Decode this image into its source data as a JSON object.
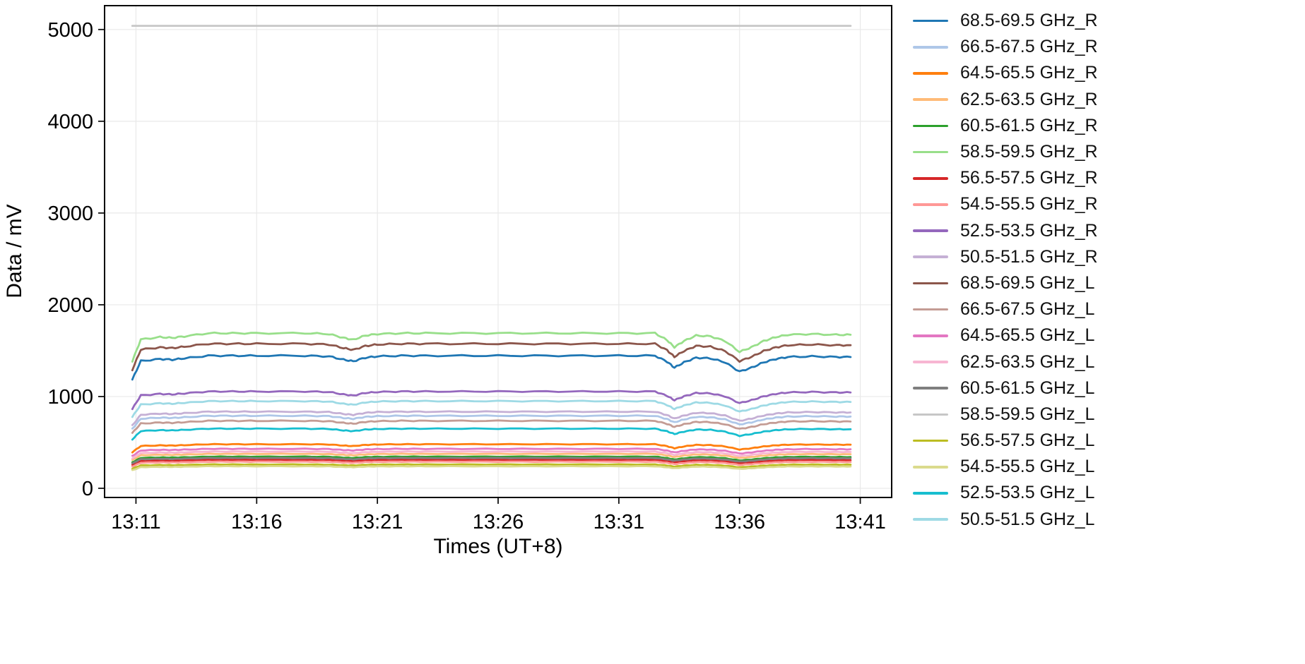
{
  "chart_data": {
    "type": "line",
    "title": "",
    "xlabel": "Times (UT+8)",
    "ylabel": "Data / mV",
    "grid": true,
    "legend_position": "right",
    "background_color": "#ffffff",
    "frame_color": "#000000",
    "grid_color": "#e9e9e9",
    "xlim": [
      9.7,
      42.3
    ],
    "ylim": [
      -100,
      5260
    ],
    "yticks": [
      0,
      1000,
      2000,
      3000,
      4000,
      5000
    ],
    "xticks": [
      {
        "m": 11,
        "label": "13:11"
      },
      {
        "m": 16,
        "label": "13:16"
      },
      {
        "m": 21,
        "label": "13:21"
      },
      {
        "m": 26,
        "label": "13:26"
      },
      {
        "m": 31,
        "label": "13:31"
      },
      {
        "m": 36,
        "label": "13:36"
      },
      {
        "m": 41,
        "label": "13:41"
      }
    ],
    "x_unit": "minutes after 13:00 (UT+8)",
    "note": "values_mV[i] = baseline_mV * relative_level[i] for non-flat series; flat series is saturated constant at baseline_mV. noise_mV is the observed small jitter amplitude.",
    "x": [
      10.85,
      11.2,
      12.0,
      12.5,
      13.0,
      14.0,
      15.0,
      16.0,
      18.0,
      19.0,
      19.6,
      20.0,
      20.5,
      21.0,
      22.0,
      23.0,
      25.0,
      27.0,
      29.0,
      31.0,
      32.5,
      33.0,
      33.3,
      33.7,
      34.2,
      34.8,
      35.4,
      36.0,
      36.5,
      37.0,
      37.5,
      38.0,
      39.0,
      40.0,
      40.6
    ],
    "relative_level": [
      0.82,
      0.96,
      0.975,
      0.97,
      0.98,
      1.0,
      1.0,
      1.0,
      1.0,
      0.995,
      0.97,
      0.958,
      0.985,
      0.995,
      1.0,
      1.0,
      1.0,
      1.0,
      1.0,
      1.0,
      1.0,
      0.955,
      0.91,
      0.95,
      0.985,
      0.98,
      0.95,
      0.88,
      0.91,
      0.95,
      0.975,
      0.99,
      0.995,
      0.99,
      0.99
    ],
    "series": [
      {
        "name": "68.5-69.5 GHz_R",
        "color": "#1f77b4",
        "baseline_mV": 1445,
        "noise_mV": 9,
        "flat": false
      },
      {
        "name": "66.5-67.5 GHz_R",
        "color": "#aec7e8",
        "baseline_mV": 790,
        "noise_mV": 6,
        "flat": false
      },
      {
        "name": "64.5-65.5 GHz_R",
        "color": "#ff7f0e",
        "baseline_mV": 480,
        "noise_mV": 4,
        "flat": false
      },
      {
        "name": "62.5-63.5 GHz_R",
        "color": "#ffbb78",
        "baseline_mV": 375,
        "noise_mV": 3,
        "flat": false
      },
      {
        "name": "60.5-61.5 GHz_R",
        "color": "#2ca02c",
        "baseline_mV": 345,
        "noise_mV": 3,
        "flat": false
      },
      {
        "name": "58.5-59.5 GHz_R",
        "color": "#98df8a",
        "baseline_mV": 1690,
        "noise_mV": 9,
        "flat": false
      },
      {
        "name": "56.5-57.5 GHz_R",
        "color": "#d62728",
        "baseline_mV": 310,
        "noise_mV": 3,
        "flat": false
      },
      {
        "name": "54.5-55.5 GHz_R",
        "color": "#ff9896",
        "baseline_mV": 290,
        "noise_mV": 3,
        "flat": false
      },
      {
        "name": "52.5-53.5 GHz_R",
        "color": "#9467bd",
        "baseline_mV": 1055,
        "noise_mV": 7,
        "flat": false
      },
      {
        "name": "50.5-51.5 GHz_R",
        "color": "#c5b0d5",
        "baseline_mV": 835,
        "noise_mV": 6,
        "flat": false
      },
      {
        "name": "68.5-69.5 GHz_L",
        "color": "#8c564b",
        "baseline_mV": 1575,
        "noise_mV": 9,
        "flat": false
      },
      {
        "name": "66.5-67.5 GHz_L",
        "color": "#c49c94",
        "baseline_mV": 735,
        "noise_mV": 6,
        "flat": false
      },
      {
        "name": "64.5-65.5 GHz_L",
        "color": "#e377c2",
        "baseline_mV": 430,
        "noise_mV": 4,
        "flat": false
      },
      {
        "name": "62.5-63.5 GHz_L",
        "color": "#f7b6d2",
        "baseline_mV": 400,
        "noise_mV": 3,
        "flat": false
      },
      {
        "name": "60.5-61.5 GHz_L",
        "color": "#7f7f7f",
        "baseline_mV": 330,
        "noise_mV": 3,
        "flat": false
      },
      {
        "name": "58.5-59.5 GHz_L",
        "color": "#c7c7c7",
        "baseline_mV": 5040,
        "noise_mV": 0,
        "flat": true
      },
      {
        "name": "56.5-57.5 GHz_L",
        "color": "#bcbd22",
        "baseline_mV": 260,
        "noise_mV": 3,
        "flat": false
      },
      {
        "name": "54.5-55.5 GHz_L",
        "color": "#dbdb8d",
        "baseline_mV": 240,
        "noise_mV": 3,
        "flat": false
      },
      {
        "name": "52.5-53.5 GHz_L",
        "color": "#17becf",
        "baseline_mV": 650,
        "noise_mV": 5,
        "flat": false
      },
      {
        "name": "50.5-51.5 GHz_L",
        "color": "#9edae5",
        "baseline_mV": 950,
        "noise_mV": 6,
        "flat": false
      }
    ]
  }
}
